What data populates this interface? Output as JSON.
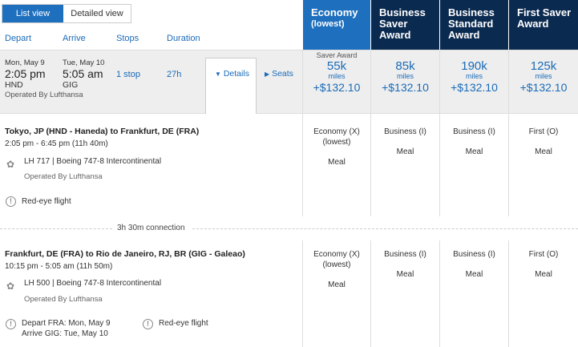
{
  "view_toggle": {
    "list": "List view",
    "detailed": "Detailed view"
  },
  "columns": {
    "depart": "Depart",
    "arrive": "Arrive",
    "stops": "Stops",
    "duration": "Duration"
  },
  "fare_headers": [
    {
      "title": "Economy",
      "subtitle": "(lowest)"
    },
    {
      "title": "Business Saver Award"
    },
    {
      "title": "Business Standard Award"
    },
    {
      "title": "First Saver Award"
    }
  ],
  "summary": {
    "depart_date": "Mon, May 9",
    "depart_time": "2:05 pm",
    "depart_airport": "HND",
    "arrive_date": "Tue, May 10",
    "arrive_time": "5:05 am",
    "arrive_airport": "GIG",
    "stops": "1 stop",
    "duration": "27h",
    "operated_by": "Operated By Lufthansa",
    "details_label": "Details",
    "seats_label": "Seats"
  },
  "fares": [
    {
      "tag": "Saver Award",
      "miles": "55k",
      "unit": "miles",
      "price": "+$132.10"
    },
    {
      "tag": "",
      "miles": "85k",
      "unit": "miles",
      "price": "+$132.10"
    },
    {
      "tag": "",
      "miles": "190k",
      "unit": "miles",
      "price": "+$132.10"
    },
    {
      "tag": "",
      "miles": "125k",
      "unit": "miles",
      "price": "+$132.10"
    }
  ],
  "segments": [
    {
      "route": "Tokyo, JP (HND - Haneda) to Frankfurt, DE (FRA)",
      "times": "2:05 pm - 6:45 pm (11h 40m)",
      "flight": "LH 717",
      "aircraft": "Boeing 747-8 Intercontinental",
      "operated_by": "Operated By Lufthansa",
      "notice": "Red-eye flight",
      "cabins": [
        {
          "cls": "Economy (X)",
          "sub": "(lowest)",
          "meal": "Meal"
        },
        {
          "cls": "Business (I)",
          "sub": "",
          "meal": "Meal"
        },
        {
          "cls": "Business (I)",
          "sub": "",
          "meal": "Meal"
        },
        {
          "cls": "First (O)",
          "sub": "",
          "meal": "Meal"
        }
      ]
    },
    {
      "route": "Frankfurt, DE (FRA) to Rio de Janeiro, RJ, BR (GIG - Galeao)",
      "times": "10:15 pm - 5:05 am (11h 50m)",
      "flight": "LH 500",
      "aircraft": "Boeing 747-8 Intercontinental",
      "operated_by": "Operated By Lufthansa",
      "depart_note": "Depart FRA: Mon, May 9",
      "arrive_note": "Arrive GIG: Tue, May 10",
      "notice": "Red-eye flight",
      "cabins": [
        {
          "cls": "Economy (X)",
          "sub": "(lowest)",
          "meal": "Meal"
        },
        {
          "cls": "Business (I)",
          "sub": "",
          "meal": "Meal"
        },
        {
          "cls": "Business (I)",
          "sub": "",
          "meal": "Meal"
        },
        {
          "cls": "First (O)",
          "sub": "",
          "meal": "Meal"
        }
      ]
    }
  ],
  "connection": "3h 30m connection",
  "icons": {
    "airline": "lufthansa-logo-icon",
    "warning": "info-circle-icon",
    "details": "caret-down-icon",
    "seats": "caret-right-icon"
  },
  "colors": {
    "economy_header": "#1e6fbe",
    "award_header": "#0b2a50",
    "link": "#1a6bb8"
  }
}
